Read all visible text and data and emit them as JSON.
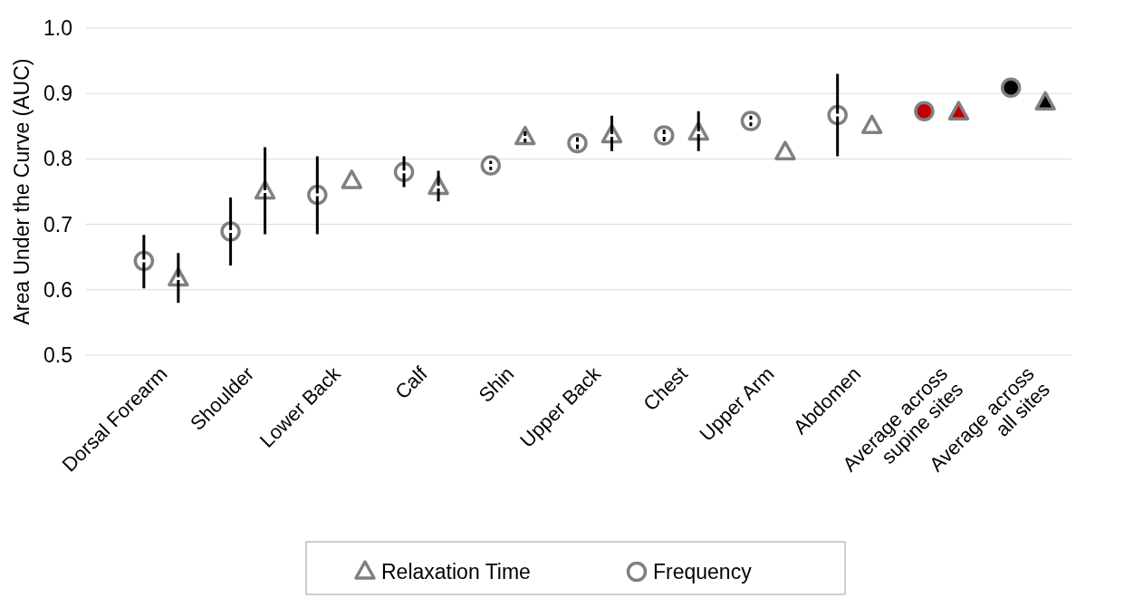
{
  "chart_data": {
    "type": "scatter",
    "ylabel": "Area Under the Curve (AUC)",
    "categories": [
      "Dorsal Forearm",
      "Shoulder",
      "Lower Back",
      "Calf",
      "Shin",
      "Upper Back",
      "Chest",
      "Upper Arm",
      "Abdomen",
      "Average across supine sites",
      "Average across all sites"
    ],
    "ylim": [
      0.5,
      1.0
    ],
    "yticks": [
      {
        "value": 0.5,
        "label": "0.5"
      },
      {
        "value": 0.6,
        "label": "0.6"
      },
      {
        "value": 0.7,
        "label": "0.7"
      },
      {
        "value": 0.8,
        "label": "0.8"
      },
      {
        "value": 0.9,
        "label": "0.9"
      },
      {
        "value": 1.0,
        "label": "1.0"
      }
    ],
    "grid": "y",
    "legend": "bottom",
    "series": [
      {
        "name": "Relaxation Time",
        "color": "#808080",
        "marker": "triangle",
        "colors": [
          "#ffffff",
          "#ffffff",
          "#ffffff",
          "#ffffff",
          "#ffffff",
          "#ffffff",
          "#ffffff",
          "#ffffff",
          "#ffffff",
          "#c00000",
          "#000000"
        ],
        "values": [
          0.617,
          0.75,
          0.766,
          0.757,
          0.833,
          0.836,
          0.84,
          0.81,
          0.85,
          0.871,
          0.886
        ],
        "errors": [
          [
            0.58,
            0.656
          ],
          [
            0.685,
            0.818
          ],
          null,
          [
            0.735,
            0.782
          ],
          [
            0.825,
            0.842
          ],
          [
            0.812,
            0.866
          ],
          [
            0.812,
            0.873
          ],
          null,
          null,
          null,
          null
        ]
      },
      {
        "name": "Frequency",
        "color": "#808080",
        "marker": "circle",
        "colors": [
          "#ffffff",
          "#ffffff",
          "#ffffff",
          "#ffffff",
          "#ffffff",
          "#ffffff",
          "#ffffff",
          "#ffffff",
          "#ffffff",
          "#c00000",
          "#000000"
        ],
        "values": [
          0.644,
          0.689,
          0.745,
          0.78,
          0.79,
          0.824,
          0.836,
          0.858,
          0.867,
          0.873,
          0.909
        ],
        "errors": [
          [
            0.602,
            0.684
          ],
          [
            0.637,
            0.741
          ],
          [
            0.685,
            0.804
          ],
          [
            0.757,
            0.804
          ],
          [
            0.783,
            0.797
          ],
          [
            0.815,
            0.833
          ],
          [
            0.827,
            0.845
          ],
          [
            0.85,
            0.866
          ],
          [
            0.804,
            0.93
          ],
          null,
          null
        ]
      }
    ]
  }
}
